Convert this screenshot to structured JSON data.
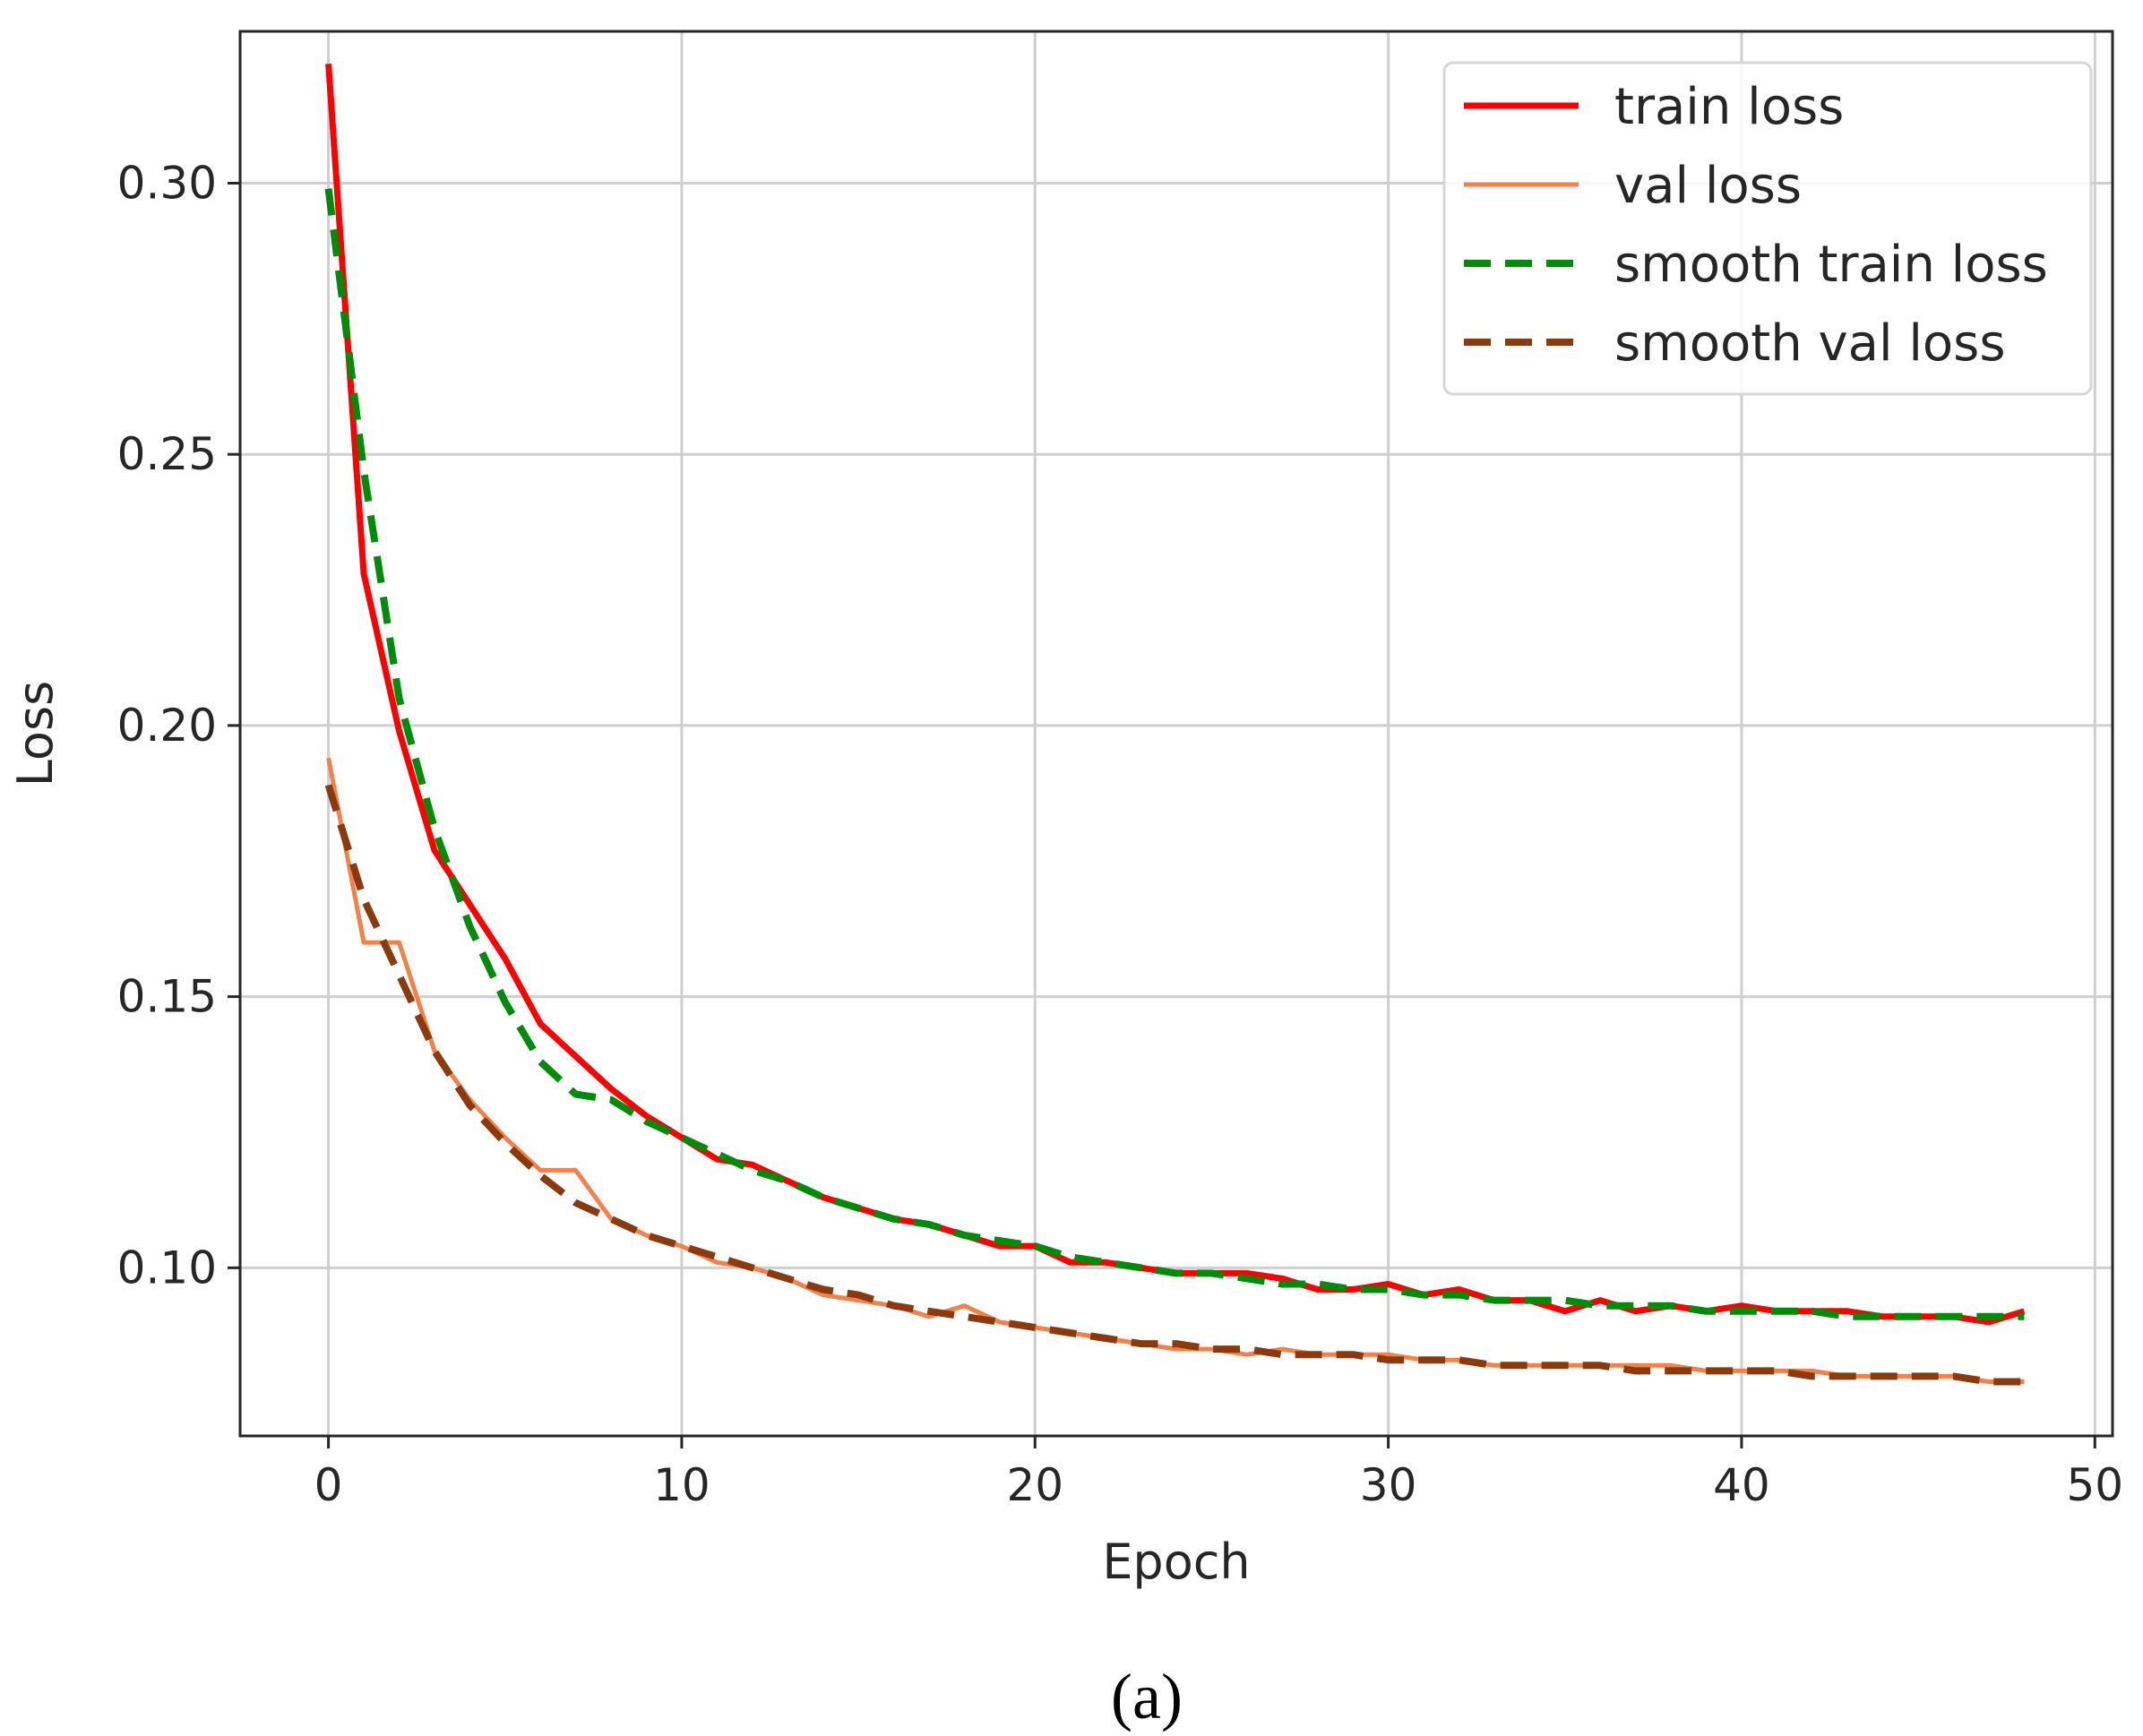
{
  "chart_data": {
    "type": "line",
    "xlabel": "Epoch",
    "ylabel": "Loss",
    "caption": "(a)",
    "xlim": [
      -2.5,
      50.5
    ],
    "ylim": [
      0.069,
      0.328
    ],
    "xticks": [
      0,
      10,
      20,
      30,
      40,
      50
    ],
    "xtick_labels": [
      "0",
      "10",
      "20",
      "30",
      "40",
      "50"
    ],
    "yticks": [
      0.1,
      0.15,
      0.2,
      0.25,
      0.3
    ],
    "ytick_labels": [
      "0.10",
      "0.15",
      "0.20",
      "0.25",
      "0.30"
    ],
    "grid": true,
    "legend_position": "top-right",
    "x": [
      0,
      1,
      2,
      3,
      4,
      5,
      6,
      7,
      8,
      9,
      10,
      11,
      12,
      13,
      14,
      15,
      16,
      17,
      18,
      19,
      20,
      21,
      22,
      23,
      24,
      25,
      26,
      27,
      28,
      29,
      30,
      31,
      32,
      33,
      34,
      35,
      36,
      37,
      38,
      39,
      40,
      41,
      42,
      43,
      44,
      45,
      46,
      47,
      48
    ],
    "series": [
      {
        "name": "train loss",
        "color": "#ff0000",
        "style": "solid",
        "values": [
          0.322,
          0.228,
          0.199,
          0.177,
          0.167,
          0.157,
          0.145,
          0.139,
          0.133,
          0.128,
          0.124,
          0.12,
          0.119,
          0.116,
          0.113,
          0.111,
          0.109,
          0.108,
          0.106,
          0.104,
          0.104,
          0.101,
          0.101,
          0.1,
          0.099,
          0.099,
          0.099,
          0.098,
          0.096,
          0.096,
          0.097,
          0.095,
          0.096,
          0.094,
          0.094,
          0.092,
          0.094,
          0.092,
          0.093,
          0.092,
          0.093,
          0.092,
          0.092,
          0.092,
          0.091,
          0.091,
          0.091,
          0.09,
          0.092
        ]
      },
      {
        "name": "val loss",
        "color": "#f4804a",
        "style": "solid",
        "values": [
          0.194,
          0.16,
          0.16,
          0.14,
          0.131,
          0.124,
          0.118,
          0.118,
          0.109,
          0.106,
          0.104,
          0.101,
          0.1,
          0.098,
          0.095,
          0.094,
          0.093,
          0.091,
          0.093,
          0.09,
          0.089,
          0.088,
          0.087,
          0.086,
          0.085,
          0.085,
          0.084,
          0.085,
          0.084,
          0.084,
          0.084,
          0.083,
          0.083,
          0.082,
          0.082,
          0.082,
          0.082,
          0.082,
          0.082,
          0.081,
          0.081,
          0.081,
          0.081,
          0.08,
          0.08,
          0.08,
          0.08,
          0.079,
          0.079
        ]
      },
      {
        "name": "smooth train loss",
        "color": "#008c0a",
        "style": "dashed",
        "values": [
          0.299,
          0.247,
          0.205,
          0.181,
          0.163,
          0.149,
          0.138,
          0.132,
          0.131,
          0.127,
          0.124,
          0.121,
          0.118,
          0.116,
          0.113,
          0.111,
          0.109,
          0.108,
          0.106,
          0.105,
          0.104,
          0.102,
          0.101,
          0.1,
          0.099,
          0.099,
          0.098,
          0.097,
          0.097,
          0.096,
          0.096,
          0.095,
          0.095,
          0.094,
          0.094,
          0.094,
          0.093,
          0.093,
          0.093,
          0.092,
          0.092,
          0.092,
          0.092,
          0.091,
          0.091,
          0.091,
          0.091,
          0.091,
          0.091
        ]
      },
      {
        "name": "smooth val loss",
        "color": "#8b3a0e",
        "style": "dashed",
        "values": [
          0.189,
          0.168,
          0.154,
          0.14,
          0.13,
          0.123,
          0.117,
          0.112,
          0.109,
          0.106,
          0.104,
          0.102,
          0.1,
          0.098,
          0.096,
          0.095,
          0.093,
          0.092,
          0.091,
          0.09,
          0.089,
          0.088,
          0.087,
          0.086,
          0.086,
          0.085,
          0.085,
          0.084,
          0.084,
          0.084,
          0.083,
          0.083,
          0.083,
          0.082,
          0.082,
          0.082,
          0.082,
          0.081,
          0.081,
          0.081,
          0.081,
          0.081,
          0.08,
          0.08,
          0.08,
          0.08,
          0.08,
          0.079,
          0.079
        ]
      }
    ]
  }
}
